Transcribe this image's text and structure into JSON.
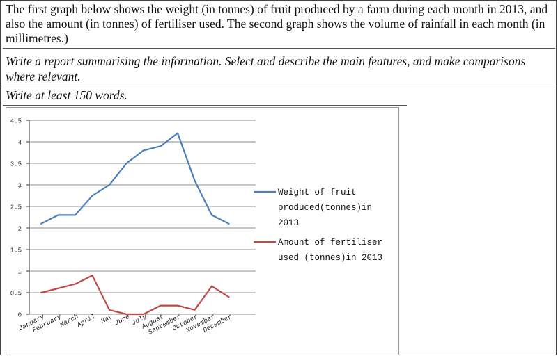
{
  "prompt": {
    "description": "The first graph below shows the weight (in tonnes) of fruit produced by a farm during each month in 2013, and also the amount (in tonnes) of fertiliser used. The second graph shows the volume of rainfall in each month (in millimetres.)",
    "instruction": "Write a report summarising the information. Select and describe the main features, and make comparisons where relevant.",
    "word_count": "Write at least 150 words."
  },
  "colors": {
    "fruit": "#4a7ebb",
    "fertiliser": "#be4b48",
    "grid": "#8c8c8c"
  },
  "chart_data": {
    "type": "line",
    "categories": [
      "January",
      "February",
      "March",
      "April",
      "May",
      "June",
      "July",
      "August",
      "September",
      "October",
      "November",
      "December"
    ],
    "y_ticks": [
      "0",
      "0.5",
      "1",
      "1.5",
      "2",
      "2.5",
      "3",
      "3.5",
      "4",
      "4.5"
    ],
    "ylim": [
      0,
      4.5
    ],
    "grid": true,
    "legend_position": "right",
    "series": [
      {
        "name": "Weight of fruit produced(tonnes)in 2013",
        "legend_lines": [
          "Weight of fruit",
          "produced(tonnes)in",
          "2013"
        ],
        "values": [
          2.1,
          2.3,
          2.3,
          2.75,
          3.0,
          3.5,
          3.8,
          3.9,
          4.2,
          3.1,
          2.3,
          2.1
        ]
      },
      {
        "name": "Amount of fertiliser used (tonnes)in 2013",
        "legend_lines": [
          "Amount of fertiliser",
          "used (tonnes)in 2013"
        ],
        "values": [
          0.5,
          0.6,
          0.7,
          0.9,
          0.1,
          0.0,
          0.0,
          0.2,
          0.2,
          0.1,
          0.65,
          0.4
        ]
      }
    ]
  }
}
